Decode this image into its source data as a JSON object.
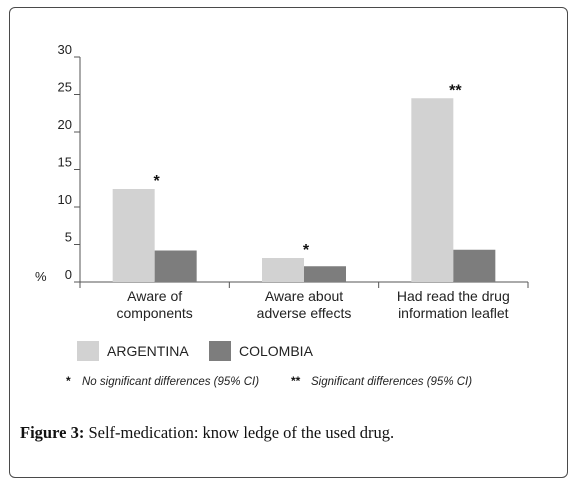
{
  "chart_data": {
    "type": "bar",
    "categories": [
      "Aware of components",
      "Aware about adverse effects",
      "Had read the drug information leaflet"
    ],
    "category_lines": [
      [
        "Aware of",
        "components"
      ],
      [
        "Aware about",
        "adverse effects"
      ],
      [
        "Had read the drug",
        "information leaflet"
      ]
    ],
    "series": [
      {
        "name": "ARGENTINA",
        "values": [
          12.4,
          3.2,
          24.5
        ],
        "color": "#d2d2d2"
      },
      {
        "name": "COLOMBIA",
        "values": [
          4.2,
          2.1,
          4.3
        ],
        "color": "#7d7d7d"
      }
    ],
    "annotations": [
      "*",
      "*",
      "**"
    ],
    "ylabel": "%",
    "ylim": [
      0,
      30
    ],
    "yticks": [
      0,
      5,
      10,
      15,
      20,
      25,
      30
    ],
    "grid": false,
    "legend_position": "bottom",
    "footnote": {
      "mark1": "*",
      "text1": "No significant differences (95% CI)",
      "mark2": "**",
      "text2": "Significant differences (95% CI)"
    }
  },
  "caption": {
    "label": "Figure 3:",
    "text": " Self-medication: know ledge of the used drug."
  }
}
